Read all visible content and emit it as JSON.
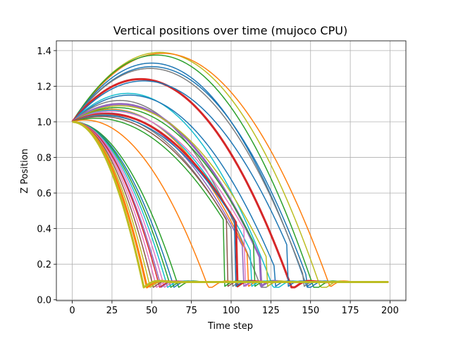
{
  "chart_data": {
    "type": "line",
    "title": "Vertical positions over time (mujoco CPU)",
    "xlabel": "Time step",
    "ylabel": "Z Position",
    "xlim": [
      -10,
      210
    ],
    "ylim": [
      -0.005,
      1.455
    ],
    "xticks": [
      0,
      25,
      50,
      75,
      100,
      125,
      150,
      175,
      200
    ],
    "yticks": [
      0.0,
      0.2,
      0.4,
      0.6,
      0.8,
      1.0,
      1.2,
      1.4
    ],
    "grid": true,
    "x_range": [
      0,
      199
    ],
    "start_height": 1.0,
    "ground_height": 0.1,
    "series_colors": [
      "#1f77b4",
      "#ff7f0e",
      "#2ca02c",
      "#d62728",
      "#9467bd",
      "#8c564b",
      "#e377c2",
      "#7f7f7f",
      "#bcbd22",
      "#17becf"
    ],
    "series": [
      {
        "peak": 1.39,
        "peak_t": 55,
        "land_t": 160,
        "color_index": 8,
        "width": 1.5
      },
      {
        "peak": 1.385,
        "peak_t": 57,
        "land_t": 162,
        "color_index": 1,
        "width": 1.5
      },
      {
        "peak": 1.375,
        "peak_t": 53,
        "land_t": 155,
        "color_index": 2,
        "width": 1.5
      },
      {
        "peak": 1.33,
        "peak_t": 50,
        "land_t": 150,
        "color_index": 0,
        "width": 1.5
      },
      {
        "peak": 1.31,
        "peak_t": 50,
        "land_t": 147,
        "color_index": 0,
        "width": 1.5
      },
      {
        "peak": 1.3,
        "peak_t": 49,
        "land_t": 145,
        "color_index": 7,
        "width": 1.5
      },
      {
        "peak": 1.24,
        "peak_t": 43,
        "land_t": 140,
        "color_index": 3,
        "width": 3
      },
      {
        "peak": 1.23,
        "peak_t": 45,
        "land_t": 135,
        "color_index": 0,
        "width": 1.5
      },
      {
        "peak": 1.16,
        "peak_t": 35,
        "land_t": 130,
        "color_index": 9,
        "width": 1.5
      },
      {
        "peak": 1.15,
        "peak_t": 36,
        "land_t": 127,
        "color_index": 0,
        "width": 1.5
      },
      {
        "peak": 1.12,
        "peak_t": 30,
        "land_t": 122,
        "color_index": 7,
        "width": 1.5
      },
      {
        "peak": 1.1,
        "peak_t": 30,
        "land_t": 118,
        "color_index": 4,
        "width": 3
      },
      {
        "peak": 1.09,
        "peak_t": 30,
        "land_t": 122,
        "color_index": 8,
        "width": 1.5
      },
      {
        "peak": 1.08,
        "peak_t": 28,
        "land_t": 114,
        "color_index": 2,
        "width": 1.5
      },
      {
        "peak": 1.07,
        "peak_t": 25,
        "land_t": 110,
        "color_index": 1,
        "width": 1.5
      },
      {
        "peak": 1.065,
        "peak_t": 25,
        "land_t": 112,
        "color_index": 9,
        "width": 1.5
      },
      {
        "peak": 1.06,
        "peak_t": 25,
        "land_t": 108,
        "color_index": 6,
        "width": 1.5
      },
      {
        "peak": 1.05,
        "peak_t": 22,
        "land_t": 107,
        "color_index": 4,
        "width": 1.5
      },
      {
        "peak": 1.045,
        "peak_t": 22,
        "land_t": 103,
        "color_index": 3,
        "width": 3
      },
      {
        "peak": 1.04,
        "peak_t": 20,
        "land_t": 100,
        "color_index": 7,
        "width": 1.5
      },
      {
        "peak": 1.035,
        "peak_t": 20,
        "land_t": 102,
        "color_index": 0,
        "width": 1.5
      },
      {
        "peak": 1.03,
        "peak_t": 18,
        "land_t": 97,
        "color_index": 5,
        "width": 1.5
      },
      {
        "peak": 1.02,
        "peak_t": 15,
        "land_t": 95,
        "color_index": 2,
        "width": 1.5
      },
      {
        "peak": 1.01,
        "peak_t": 8,
        "land_t": 88,
        "color_index": 1,
        "width": 1.5
      },
      {
        "peak": 1.0,
        "peak_t": 0,
        "land_t": 67,
        "color_index": 2,
        "width": 1.5
      },
      {
        "peak": 1.0,
        "peak_t": 0,
        "land_t": 64,
        "color_index": 0,
        "width": 1.5
      },
      {
        "peak": 1.0,
        "peak_t": 0,
        "land_t": 62,
        "color_index": 2,
        "width": 1.5
      },
      {
        "peak": 1.0,
        "peak_t": 0,
        "land_t": 60,
        "color_index": 9,
        "width": 1.5
      },
      {
        "peak": 1.0,
        "peak_t": 0,
        "land_t": 58,
        "color_index": 6,
        "width": 1.5
      },
      {
        "peak": 1.0,
        "peak_t": 0,
        "land_t": 56,
        "color_index": 4,
        "width": 1.5
      },
      {
        "peak": 1.0,
        "peak_t": 0,
        "land_t": 55,
        "color_index": 3,
        "width": 1.5
      },
      {
        "peak": 1.0,
        "peak_t": 0,
        "land_t": 53,
        "color_index": 6,
        "width": 1.5
      },
      {
        "peak": 1.0,
        "peak_t": 0,
        "land_t": 51,
        "color_index": 5,
        "width": 1.5
      },
      {
        "peak": 1.0,
        "peak_t": 0,
        "land_t": 49,
        "color_index": 8,
        "width": 1.5
      },
      {
        "peak": 1.0,
        "peak_t": 0,
        "land_t": 47,
        "color_index": 1,
        "width": 3
      },
      {
        "peak": 1.0,
        "peak_t": 0,
        "land_t": 45,
        "color_index": 8,
        "width": 3
      }
    ]
  }
}
